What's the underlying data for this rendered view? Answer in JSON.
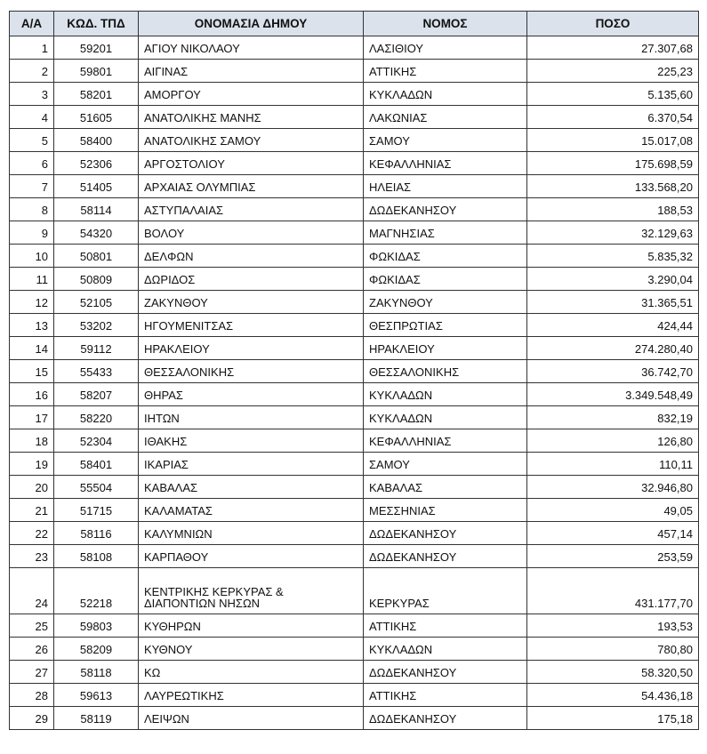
{
  "headers": [
    "Α/Α",
    "ΚΩΔ. ΤΠΔ",
    "ΟΝΟΜΑΣΙΑ ΔΗΜΟΥ",
    "ΝΟΜΟΣ",
    "ΠΟΣΟ"
  ],
  "rows": [
    [
      "1",
      "59201",
      "ΑΓΙΟΥ ΝΙΚΟΛΑΟΥ",
      "ΛΑΣΙΘΙΟΥ",
      "27.307,68"
    ],
    [
      "2",
      "59801",
      "ΑΙΓΙΝΑΣ",
      "ΑΤΤΙΚΗΣ",
      "225,23"
    ],
    [
      "3",
      "58201",
      "ΑΜΟΡΓΟΥ",
      "ΚΥΚΛΑΔΩΝ",
      "5.135,60"
    ],
    [
      "4",
      "51605",
      "ΑΝΑΤΟΛΙΚΗΣ ΜΑΝΗΣ",
      "ΛΑΚΩΝΙΑΣ",
      "6.370,54"
    ],
    [
      "5",
      "58400",
      "ΑΝΑΤΟΛΙΚΗΣ ΣΑΜΟΥ",
      "ΣΑΜΟΥ",
      "15.017,08"
    ],
    [
      "6",
      "52306",
      "ΑΡΓΟΣΤΟΛΙΟΥ",
      "ΚΕΦΑΛΛΗΝΙΑΣ",
      "175.698,59"
    ],
    [
      "7",
      "51405",
      "ΑΡΧΑΙΑΣ ΟΛΥΜΠΙΑΣ",
      "ΗΛΕΙΑΣ",
      "133.568,20"
    ],
    [
      "8",
      "58114",
      "ΑΣΤΥΠΑΛΑΙΑΣ",
      "ΔΩΔΕΚΑΝΗΣΟΥ",
      "188,53"
    ],
    [
      "9",
      "54320",
      "ΒΟΛΟΥ",
      "ΜΑΓΝΗΣΙΑΣ",
      "32.129,63"
    ],
    [
      "10",
      "50801",
      "ΔΕΛΦΩΝ",
      "ΦΩΚΙΔΑΣ",
      "5.835,32"
    ],
    [
      "11",
      "50809",
      "ΔΩΡΙΔΟΣ",
      "ΦΩΚΙΔΑΣ",
      "3.290,04"
    ],
    [
      "12",
      "52105",
      "ΖΑΚΥΝΘΟΥ",
      "ΖΑΚΥΝΘΟΥ",
      "31.365,51"
    ],
    [
      "13",
      "53202",
      "ΗΓΟΥΜΕΝΙΤΣΑΣ",
      "ΘΕΣΠΡΩΤΙΑΣ",
      "424,44"
    ],
    [
      "14",
      "59112",
      "ΗΡΑΚΛΕΙΟΥ",
      "ΗΡΑΚΛΕΙΟΥ",
      "274.280,40"
    ],
    [
      "15",
      "55433",
      "ΘΕΣΣΑΛΟΝΙΚΗΣ",
      "ΘΕΣΣΑΛΟΝΙΚΗΣ",
      "36.742,70"
    ],
    [
      "16",
      "58207",
      "ΘΗΡΑΣ",
      "ΚΥΚΛΑΔΩΝ",
      "3.349.548,49"
    ],
    [
      "17",
      "58220",
      "ΙΗΤΩΝ",
      "ΚΥΚΛΑΔΩΝ",
      "832,19"
    ],
    [
      "18",
      "52304",
      "ΙΘΑΚΗΣ",
      "ΚΕΦΑΛΛΗΝΙΑΣ",
      "126,80"
    ],
    [
      "19",
      "58401",
      "ΙΚΑΡΙΑΣ",
      "ΣΑΜΟΥ",
      "110,11"
    ],
    [
      "20",
      "55504",
      "ΚΑΒΑΛΑΣ",
      "ΚΑΒΑΛΑΣ",
      "32.946,80"
    ],
    [
      "21",
      "51715",
      "ΚΑΛΑΜΑΤΑΣ",
      "ΜΕΣΣΗΝΙΑΣ",
      "49,05"
    ],
    [
      "22",
      "58116",
      "ΚΑΛΥΜΝΙΩΝ",
      "ΔΩΔΕΚΑΝΗΣΟΥ",
      "457,14"
    ],
    [
      "23",
      "58108",
      "ΚΑΡΠΑΘΟΥ",
      "ΔΩΔΕΚΑΝΗΣΟΥ",
      "253,59"
    ],
    [
      "24",
      "52218",
      "ΚΕΝΤΡΙΚΗΣ ΚΕΡΚΥΡΑΣ & ΔΙΑΠΟΝΤΙΩΝ ΝΗΣΩΝ",
      "ΚΕΡΚΥΡΑΣ",
      "431.177,70"
    ],
    [
      "25",
      "59803",
      "ΚΥΘΗΡΩΝ",
      "ΑΤΤΙΚΗΣ",
      "193,53"
    ],
    [
      "26",
      "58209",
      "ΚΥΘΝΟΥ",
      "ΚΥΚΛΑΔΩΝ",
      "780,80"
    ],
    [
      "27",
      "58118",
      "ΚΩ",
      "ΔΩΔΕΚΑΝΗΣΟΥ",
      "58.320,50"
    ],
    [
      "28",
      "59613",
      "ΛΑΥΡΕΩΤΙΚΗΣ",
      "ΑΤΤΙΚΗΣ",
      "54.436,18"
    ],
    [
      "29",
      "58119",
      "ΛΕΙΨΩΝ",
      "ΔΩΔΕΚΑΝΗΣΟΥ",
      "175,18"
    ]
  ],
  "colors": {
    "header_bg": "#dbe2ec",
    "border": "#333333"
  }
}
